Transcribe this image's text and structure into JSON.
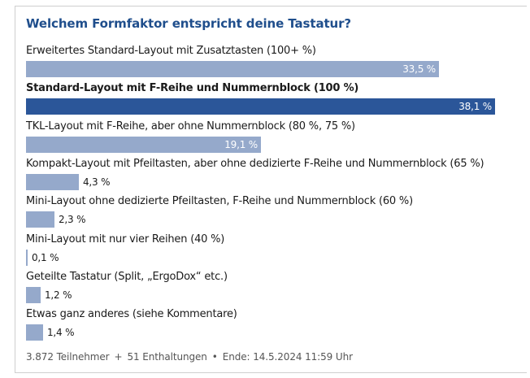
{
  "poll": {
    "title": "Welchem Formfaktor entspricht deine Tastatur?",
    "colors": {
      "title": "#1f4e8c",
      "bar": "#95a9cb",
      "bar_selected": "#2b5699"
    },
    "options": [
      {
        "label": "Erweitertes Standard-Layout mit Zusatztasten (100+ %)",
        "percent_text": "33,5 %",
        "percent": 33.5,
        "selected": false
      },
      {
        "label": "Standard-Layout mit F-Reihe und Nummernblock (100 %)",
        "percent_text": "38,1 %",
        "percent": 38.1,
        "selected": true
      },
      {
        "label": "TKL-Layout mit F-Reihe, aber ohne Nummernblock (80 %, 75 %)",
        "percent_text": "19,1 %",
        "percent": 19.1,
        "selected": false
      },
      {
        "label": "Kompakt-Layout mit Pfeiltasten, aber ohne dedizierte F-Reihe und Nummernblock (65 %)",
        "percent_text": "4,3 %",
        "percent": 4.3,
        "selected": false
      },
      {
        "label": "Mini-Layout ohne dedizierte Pfeiltasten, F-Reihe und Nummernblock (60 %)",
        "percent_text": "2,3 %",
        "percent": 2.3,
        "selected": false
      },
      {
        "label": "Mini-Layout mit nur vier Reihen (40 %)",
        "percent_text": "0,1 %",
        "percent": 0.1,
        "selected": false
      },
      {
        "label": "Geteilte Tastatur (Split, „ErgoDox“ etc.)",
        "percent_text": "1,2 %",
        "percent": 1.2,
        "selected": false
      },
      {
        "label": "Etwas ganz anderes (siehe Kommentare)",
        "percent_text": "1,4 %",
        "percent": 1.4,
        "selected": false
      }
    ],
    "footer": {
      "participants": "3.872 Teilnehmer",
      "separator": "+",
      "abstentions": "51 Enthaltungen",
      "bullet": "•",
      "end": "Ende: 14.5.2024 11:59 Uhr"
    }
  }
}
